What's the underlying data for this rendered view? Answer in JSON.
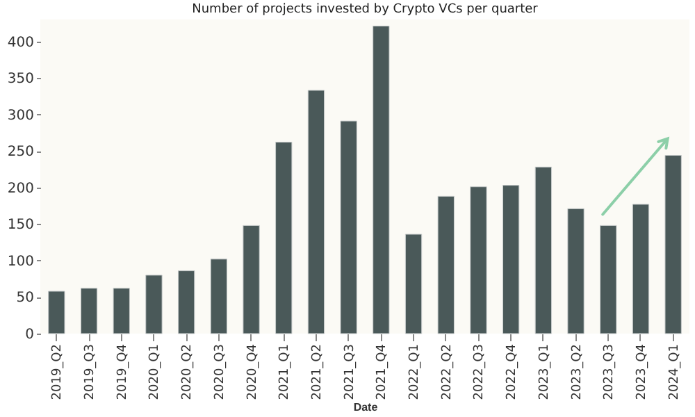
{
  "chart_data": {
    "type": "bar",
    "title": "Number of projects invested by Crypto VCs per quarter",
    "xlabel": "Date",
    "categories": [
      "2019_Q2",
      "2019_Q3",
      "2019_Q4",
      "2020_Q1",
      "2020_Q2",
      "2020_Q3",
      "2020_Q4",
      "2021_Q1",
      "2021_Q2",
      "2021_Q3",
      "2021_Q4",
      "2022_Q1",
      "2022_Q2",
      "2022_Q3",
      "2022_Q4",
      "2023_Q1",
      "2023_Q2",
      "2023_Q3",
      "2023_Q4",
      "2024_Q1"
    ],
    "values": [
      58,
      62,
      62,
      80,
      86,
      102,
      148,
      262,
      333,
      291,
      421,
      136,
      188,
      201,
      203,
      228,
      171,
      148,
      177,
      244
    ],
    "color": "#4a5959",
    "ylim": [
      0,
      430
    ],
    "yticks": [
      0,
      50,
      100,
      150,
      200,
      250,
      300,
      350,
      400
    ],
    "grid": false
  }
}
